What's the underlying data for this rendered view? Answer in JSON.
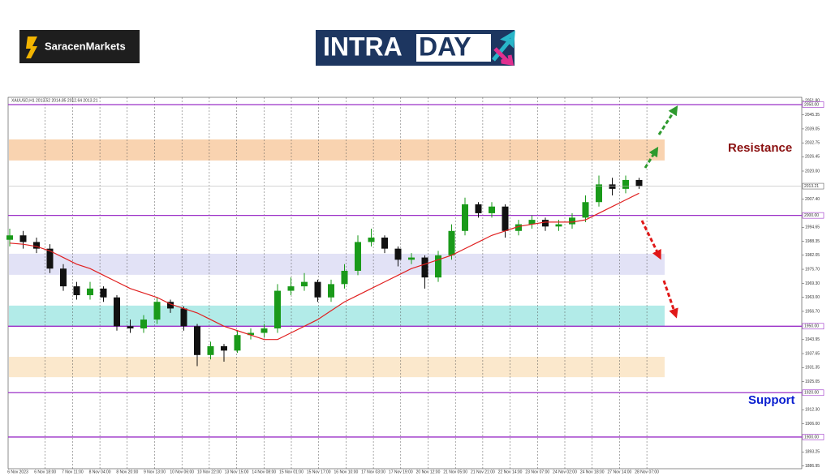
{
  "header": {
    "brand": "SaracenMarkets",
    "logo_left": "INTRA",
    "logo_right": "DAY"
  },
  "chart_data": {
    "type": "candlestick",
    "title": "XAUUSD,H1  2013.52 2014.85 2012.64 2013.21",
    "annotations": {
      "resistance": "Resistance",
      "support": "Support"
    },
    "categories": [
      "6 Nov 2023",
      "6 Nov 18:00",
      "7 Nov 11:00",
      "8 Nov 04:00",
      "8 Nov 20:00",
      "9 Nov 13:00",
      "10 Nov 06:00",
      "10 Nov 22:00",
      "13 Nov 15:00",
      "14 Nov 08:00",
      "15 Nov 01:00",
      "15 Nov 17:00",
      "16 Nov 10:00",
      "17 Nov 03:00",
      "17 Nov 19:00",
      "20 Nov 12:00",
      "21 Nov 05:00",
      "21 Nov 21:00",
      "22 Nov 14:00",
      "23 Nov 07:00",
      "24 Nov 02:00",
      "24 Nov 18:00",
      "27 Nov 14:00",
      "28 Nov 07:00"
    ],
    "candles": {
      "open": [
        1989,
        1991,
        1988,
        1985,
        1976,
        1968,
        1964,
        1967,
        1963,
        1950,
        1949,
        1953,
        1961,
        1958,
        1950,
        1937,
        1941,
        1939,
        1946,
        1947,
        1949,
        1966,
        1968,
        1970,
        1963,
        1969,
        1975,
        1988,
        1990,
        1985,
        1980,
        1981,
        1972,
        1982,
        1993,
        2005,
        2001,
        2004,
        1993,
        1996,
        1998,
        1995,
        1996,
        1999,
        2006,
        2014,
        2012,
        2016
      ],
      "high": [
        1994,
        1993,
        1990,
        1987,
        1978,
        1970,
        1970,
        1968,
        1964,
        1953,
        1955,
        1963,
        1962,
        1959,
        1951,
        1943,
        1942,
        1948,
        1949,
        1951,
        1969,
        1972,
        1974,
        1971,
        1971,
        1978,
        1991,
        1994,
        1991,
        1986,
        1983,
        1982,
        1984,
        1996,
        2008,
        2006,
        2006,
        2005,
        1998,
        2000,
        1999,
        1998,
        2001,
        2009,
        2018,
        2017,
        2018,
        2017
      ],
      "low": [
        1986,
        1985,
        1983,
        1974,
        1966,
        1962,
        1962,
        1961,
        1948,
        1947,
        1947,
        1951,
        1956,
        1948,
        1932,
        1935,
        1934,
        1938,
        1944,
        1945,
        1947,
        1964,
        1966,
        1961,
        1961,
        1967,
        1973,
        1986,
        1983,
        1977,
        1978,
        1967,
        1970,
        1980,
        1991,
        1999,
        1999,
        1990,
        1991,
        1994,
        1993,
        1993,
        1994,
        1997,
        2004,
        2009,
        2010,
        2012
      ],
      "close": [
        1991,
        1988,
        1985,
        1976,
        1968,
        1964,
        1967,
        1963,
        1950,
        1949,
        1953,
        1961,
        1958,
        1950,
        1937,
        1941,
        1939,
        1946,
        1947,
        1949,
        1966,
        1968,
        1970,
        1963,
        1969,
        1975,
        1988,
        1990,
        1985,
        1980,
        1981,
        1972,
        1982,
        1993,
        2005,
        2001,
        2004,
        1993,
        1996,
        1998,
        1995,
        1996,
        1999,
        2006,
        2014,
        2012,
        2016,
        2013.21
      ],
      "up_color": "#1a9a1a",
      "down_color": "#111111"
    },
    "moving_average": {
      "color": "#e02020",
      "values": [
        1987.5,
        1987,
        1986,
        1984,
        1981,
        1978,
        1976,
        1973,
        1970,
        1967,
        1965,
        1963,
        1960,
        1958,
        1956,
        1953,
        1950,
        1948,
        1946,
        1944,
        1944,
        1947,
        1950,
        1953,
        1957,
        1961,
        1964,
        1967,
        1970,
        1973,
        1976,
        1978,
        1980,
        1982,
        1985,
        1988,
        1991,
        1993,
        1995,
        1996,
        1997,
        1997,
        1997,
        1998,
        2001,
        2004,
        2007,
        2010
      ]
    },
    "zones": [
      {
        "low": 2024.8,
        "high": 2034.3,
        "color": "#f9d3b0"
      },
      {
        "low": 1973.2,
        "high": 1982.7,
        "color": "#e2e2f6"
      },
      {
        "low": 1950,
        "high": 1959.3,
        "color": "#b2ebe8"
      },
      {
        "low": 1927,
        "high": 1936.2,
        "color": "#fbe8cc"
      }
    ],
    "levels": [
      {
        "value": 2050,
        "label": "2050.00"
      },
      {
        "value": 2000,
        "label": "2000.00"
      },
      {
        "value": 1950,
        "label": "1950.00"
      },
      {
        "value": 1920,
        "label": "1920.00"
      },
      {
        "value": 1900,
        "label": "1900.00"
      }
    ],
    "level_color": "#9b30c8",
    "ylim": [
      1885.7,
      2053.3
    ],
    "yticks": [
      {
        "value": 2051.8,
        "label": "2051.80"
      },
      2045.35,
      2039.05,
      2032.75,
      2026.45,
      {
        "value": 2020,
        "label": "2020.00"
      },
      {
        "value": 2007.4,
        "label": "2007.40"
      },
      1994.65,
      1988.35,
      1982.05,
      {
        "value": 1975.7,
        "label": "1975.70"
      },
      {
        "value": 1969.3,
        "label": "1969.30"
      },
      {
        "value": 1963,
        "label": "1963.00"
      },
      {
        "value": 1956.7,
        "label": "1956.70"
      },
      1943.95,
      1937.65,
      1931.35,
      1925.05,
      {
        "value": 1912.3,
        "label": "1912.30"
      },
      {
        "value": 1906,
        "label": "1906.00"
      },
      1893.25,
      1886.95
    ],
    "grid": true
  }
}
